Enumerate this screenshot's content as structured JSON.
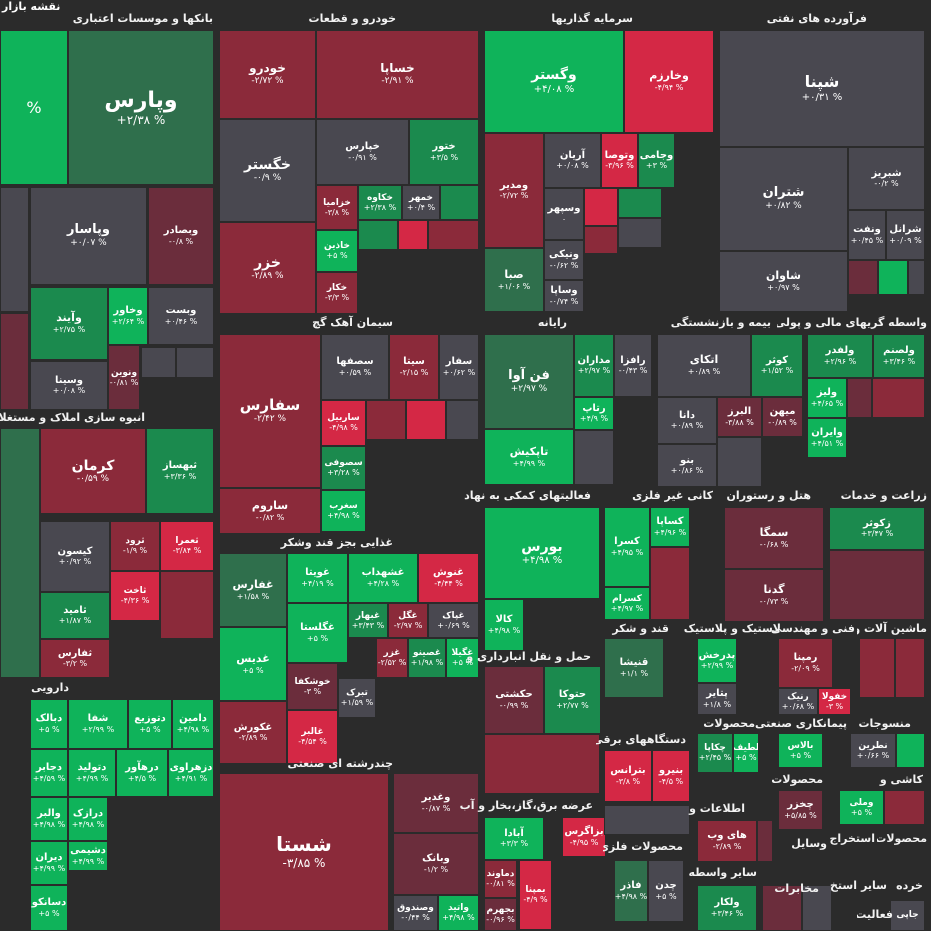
{
  "title": "نقشه بازار",
  "colors": {
    "gray": "#494850",
    "gdark": "#2f6f4c",
    "g": "#1b8a4e",
    "gbright": "#0fb35a",
    "rdark": "#6b2d3c",
    "r": "#8b2a3a",
    "rbright": "#d42845"
  },
  "sectors": [
    {
      "id": "banks",
      "label": "بانکها و موسسات اعتباری"
    },
    {
      "id": "auto",
      "label": "خودرو و قطعات"
    },
    {
      "id": "invest",
      "label": "سرمایه گذاریها"
    },
    {
      "id": "oil",
      "label": "فرآورده های نفتی"
    },
    {
      "id": "cement",
      "label": "سیمان آهک گچ"
    },
    {
      "id": "computer",
      "label": "رایانه"
    },
    {
      "id": "retire",
      "label": "بیمه و بازنشستگی"
    },
    {
      "id": "finance",
      "label": "واسطه گریهای مالی و پولی"
    },
    {
      "id": "realestate",
      "label": "انبوه سازی املاک و مستغلات"
    },
    {
      "id": "food",
      "label": "غذایی بجز قند وشکر"
    },
    {
      "id": "support",
      "label": "فعالیتهای کمکی به نهاد"
    },
    {
      "id": "nonmetal",
      "label": "کانی غیر فلزی"
    },
    {
      "id": "hotel",
      "label": "هتل و رستوران"
    },
    {
      "id": "agri",
      "label": "زراعت و خدمات"
    },
    {
      "id": "sugar",
      "label": "قند و شکر"
    },
    {
      "id": "rubber",
      "label": "لاستیک و پلاستیک"
    },
    {
      "id": "eng",
      "label": "فنی و مهندسی"
    },
    {
      "id": "machine",
      "label": "ماشین آلات و"
    },
    {
      "id": "pharma",
      "label": "دارویی"
    },
    {
      "id": "transport",
      "label": "حمل و نقل انبارداری و"
    },
    {
      "id": "devices",
      "label": "دستگاههای برقی"
    },
    {
      "id": "products",
      "label": "محصولات"
    },
    {
      "id": "contract",
      "label": "پیمانکاری صنعتی"
    },
    {
      "id": "textile",
      "label": "منسوجات"
    },
    {
      "id": "multi",
      "label": "چندرشته ای صنعتی"
    },
    {
      "id": "utility",
      "label": "عرضه برق،گاز،بخار و آب"
    },
    {
      "id": "info",
      "label": "اطلاعات و"
    },
    {
      "id": "products2",
      "label": "محصولات"
    },
    {
      "id": "kashi",
      "label": "کاشی و"
    },
    {
      "id": "metal",
      "label": "محصولات فلزی"
    },
    {
      "id": "tools",
      "label": "وسایل"
    },
    {
      "id": "extract",
      "label": "استخراج"
    },
    {
      "id": "products3",
      "label": "محصولات"
    },
    {
      "id": "other",
      "label": "سایر واسطه"
    },
    {
      "id": "commun",
      "label": "مخابرات"
    },
    {
      "id": "stone",
      "label": "استخ"
    },
    {
      "id": "other2",
      "label": "سایر"
    },
    {
      "id": "retail",
      "label": "خرده"
    },
    {
      "id": "activity",
      "label": "فعالیت"
    }
  ],
  "tiles": [
    {
      "name": "",
      "change": "%",
      "c": "gbright"
    },
    {
      "name": "وپارس",
      "change": "+۲/۳۸ %",
      "c": "gdark"
    },
    {
      "name": "",
      "change": "",
      "c": "gray"
    },
    {
      "name": "وپاسار",
      "change": "+۰/۰۷ %",
      "c": "gray"
    },
    {
      "name": "وبصادر",
      "change": "-۰/۸ %",
      "c": "rdark"
    },
    {
      "name": "",
      "change": "",
      "c": "rdark"
    },
    {
      "name": "وآیند",
      "change": "+۲/۷۵ %",
      "c": "g"
    },
    {
      "name": "وخاور",
      "change": "+۲/۶۴ %",
      "c": "gbright"
    },
    {
      "name": "وبست",
      "change": "+۰/۴۶ %",
      "c": "gray"
    },
    {
      "name": "وسینا",
      "change": "+۰/۰۸ %",
      "c": "gray"
    },
    {
      "name": "ونوین",
      "change": "-۰/۸۱ %",
      "c": "rdark"
    },
    {
      "name": "",
      "change": "",
      "c": "gray"
    },
    {
      "name": "",
      "change": "",
      "c": "gray"
    },
    {
      "name": "خودرو",
      "change": "-۲/۷۲ %",
      "c": "r"
    },
    {
      "name": "خساپا",
      "change": "-۲/۹۱ %",
      "c": "r"
    },
    {
      "name": "خگستر",
      "change": "-۰/۹ %",
      "c": "gray"
    },
    {
      "name": "خپارس",
      "change": "-۰/۹۱ %",
      "c": "gray"
    },
    {
      "name": "ختور",
      "change": "+۳/۵ %",
      "c": "g"
    },
    {
      "name": "خزر",
      "change": "-۲/۸۹ %",
      "c": "r"
    },
    {
      "name": "خزامیا",
      "change": "-۳/۸ %",
      "c": "r"
    },
    {
      "name": "خکاوه",
      "change": "+۲/۳۸ %",
      "c": "g"
    },
    {
      "name": "خمهر",
      "change": "+۰/۴ %",
      "c": "gray"
    },
    {
      "name": "",
      "change": "",
      "c": "g"
    },
    {
      "name": "خاذین",
      "change": "+۵ %",
      "c": "gbright"
    },
    {
      "name": "خکار",
      "change": "-۳/۳ %",
      "c": "r"
    },
    {
      "name": "",
      "change": "",
      "c": "g"
    },
    {
      "name": "",
      "change": "",
      "c": "rbright"
    },
    {
      "name": "",
      "change": "",
      "c": "r"
    },
    {
      "name": "وگستر",
      "change": "+۴/۰۸ %",
      "c": "gbright"
    },
    {
      "name": "وخارزم",
      "change": "-۴/۹۴ %",
      "c": "rbright"
    },
    {
      "name": "ومدیر",
      "change": "-۲/۷۲ %",
      "c": "r"
    },
    {
      "name": "آریان",
      "change": "+۰/۰۸ %",
      "c": "gray"
    },
    {
      "name": "وتوصا",
      "change": "-۳/۹۶ %",
      "c": "rbright"
    },
    {
      "name": "وجامی",
      "change": "+۳ %",
      "c": "g"
    },
    {
      "name": "وسپهر",
      "change": "۰",
      "c": "gray"
    },
    {
      "name": "",
      "change": "",
      "c": "rbright"
    },
    {
      "name": "",
      "change": "",
      "c": "g"
    },
    {
      "name": "صبا",
      "change": "+۱/۰۶ %",
      "c": "gdark"
    },
    {
      "name": "ونیکی",
      "change": "-۰/۶۲ %",
      "c": "gray"
    },
    {
      "name": "وساپا",
      "change": "-۰/۷۴ %",
      "c": "gray"
    },
    {
      "name": "",
      "change": "",
      "c": "r"
    },
    {
      "name": "",
      "change": "",
      "c": "gray"
    },
    {
      "name": "شپنا",
      "change": "+۰/۳۱ %",
      "c": "gray"
    },
    {
      "name": "شتران",
      "change": "+۰/۸۲ %",
      "c": "gray"
    },
    {
      "name": "شبریز",
      "change": "-۰/۲ %",
      "c": "gray"
    },
    {
      "name": "ونفت",
      "change": "+۰/۴۵ %",
      "c": "gray"
    },
    {
      "name": "شرانل",
      "change": "+۰/۰۹ %",
      "c": "gray"
    },
    {
      "name": "شاوان",
      "change": "+۰/۹۷ %",
      "c": "gray"
    },
    {
      "name": "",
      "change": "",
      "c": "rdark"
    },
    {
      "name": "",
      "change": "",
      "c": "gbright"
    },
    {
      "name": "",
      "change": "",
      "c": "gray"
    },
    {
      "name": "سفارس",
      "change": "-۲/۴۲ %",
      "c": "r"
    },
    {
      "name": "سصفها",
      "change": "+۰/۵۹ %",
      "c": "gray"
    },
    {
      "name": "سیتا",
      "change": "-۲/۱۵ %",
      "c": "r"
    },
    {
      "name": "سفار",
      "change": "+۰/۶۲ %",
      "c": "gray"
    },
    {
      "name": "ساربیل",
      "change": "-۴/۹۸ %",
      "c": "rbright"
    },
    {
      "name": "سصوفی",
      "change": "+۳/۲۸ %",
      "c": "g"
    },
    {
      "name": "سغرب",
      "change": "+۴/۹۸ %",
      "c": "gbright"
    },
    {
      "name": "ساروم",
      "change": "-۰/۸۲ %",
      "c": "r"
    },
    {
      "name": "",
      "change": "",
      "c": "r"
    },
    {
      "name": "",
      "change": "",
      "c": "rbright"
    },
    {
      "name": "",
      "change": "",
      "c": "gray"
    },
    {
      "name": "فن آوا",
      "change": "+۲/۹۷ %",
      "c": "gdark"
    },
    {
      "name": "مداران",
      "change": "+۲/۹۷ %",
      "c": "g"
    },
    {
      "name": "رافزا",
      "change": "-۰/۴۳ %",
      "c": "gray"
    },
    {
      "name": "رتاپ",
      "change": "+۴/۹ %",
      "c": "gbright"
    },
    {
      "name": "تاپکیش",
      "change": "+۴/۹۹ %",
      "c": "gbright"
    },
    {
      "name": "",
      "change": "",
      "c": "gray"
    },
    {
      "name": "اتکای",
      "change": "+۰/۸۹ %",
      "c": "gray"
    },
    {
      "name": "کوثر",
      "change": "+۱/۵۲ %",
      "c": "g"
    },
    {
      "name": "دانا",
      "change": "+۰/۸۹ %",
      "c": "gray"
    },
    {
      "name": "البرز",
      "change": "-۳/۸۸ %",
      "c": "rdark"
    },
    {
      "name": "میهن",
      "change": "-۰/۸۹ %",
      "c": "rdark"
    },
    {
      "name": "بنو",
      "change": "+۰/۸۶ %",
      "c": "gray"
    },
    {
      "name": "",
      "change": "",
      "c": "gray"
    },
    {
      "name": "ولفدر",
      "change": "+۲/۹۶ %",
      "c": "g"
    },
    {
      "name": "ولصنم",
      "change": "+۳/۴۶ %",
      "c": "g"
    },
    {
      "name": "ولیز",
      "change": "+۴/۶۵ %",
      "c": "gbright"
    },
    {
      "name": "",
      "change": "",
      "c": "rdark"
    },
    {
      "name": "وایران",
      "change": "+۴/۵۱ %",
      "c": "gbright"
    },
    {
      "name": "",
      "change": "",
      "c": "r"
    },
    {
      "name": "کرمان",
      "change": "-۰/۵۹ %",
      "c": "r"
    },
    {
      "name": "ثبهساز",
      "change": "+۳/۳۶ %",
      "c": "g"
    },
    {
      "name": "",
      "change": "",
      "c": "gdark"
    },
    {
      "name": "کیسون",
      "change": "+۰/۹۲ %",
      "c": "gray"
    },
    {
      "name": "ثرود",
      "change": "-۱/۹ %",
      "c": "r"
    },
    {
      "name": "ثعمرا",
      "change": "-۳/۸۴ %",
      "c": "rbright"
    },
    {
      "name": "ثاخت",
      "change": "-۴/۳۶ %",
      "c": "rbright"
    },
    {
      "name": "ثامید",
      "change": "+۱/۸۷ %",
      "c": "g"
    },
    {
      "name": "",
      "change": "",
      "c": "r"
    },
    {
      "name": "ثفارس",
      "change": "-۳/۲ %",
      "c": "r"
    },
    {
      "name": "غفارس",
      "change": "+۱/۵۸ %",
      "c": "gdark"
    },
    {
      "name": "غویتا",
      "change": "+۴/۱۹ %",
      "c": "gbright"
    },
    {
      "name": "غشهداب",
      "change": "+۴/۲۸ %",
      "c": "gbright"
    },
    {
      "name": "غنوش",
      "change": "-۴/۴۴ %",
      "c": "rbright"
    },
    {
      "name": "غگلستا",
      "change": "+۵ %",
      "c": "gbright"
    },
    {
      "name": "غبهار",
      "change": "+۳/۴۳ %",
      "c": "g"
    },
    {
      "name": "غگل",
      "change": "-۲/۹۷ %",
      "c": "r"
    },
    {
      "name": "غپاک",
      "change": "+۰/۶۹ %",
      "c": "gray"
    },
    {
      "name": "غدیس",
      "change": "+۵ %",
      "c": "gbright"
    },
    {
      "name": "غزر",
      "change": "-۲/۵۲ %",
      "c": "r"
    },
    {
      "name": "غصینو",
      "change": "+۱/۹۸ %",
      "c": "g"
    },
    {
      "name": "غگیلا",
      "change": "+۵ %",
      "c": "gbright"
    },
    {
      "name": "خوشکفا",
      "change": "-۳ %",
      "c": "rdark"
    },
    {
      "name": "غکورش",
      "change": "-۲/۸۹ %",
      "c": "r"
    },
    {
      "name": "غالبر",
      "change": "-۴/۵۴ %",
      "c": "rbright"
    },
    {
      "name": "تبرک",
      "change": "+۱/۵۹ %",
      "c": "gray"
    },
    {
      "name": "بورس",
      "change": "+۴/۹۸ %",
      "c": "gbright"
    },
    {
      "name": "کسرا",
      "change": "+۴/۹۵ %",
      "c": "gbright"
    },
    {
      "name": "کساپا",
      "change": "+۴/۹۶ %",
      "c": "gbright"
    },
    {
      "name": "کالا",
      "change": "+۴/۹۸ %",
      "c": "gbright"
    },
    {
      "name": "کسرام",
      "change": "+۴/۹۷ %",
      "c": "gbright"
    },
    {
      "name": "",
      "change": "",
      "c": "r"
    },
    {
      "name": "سمگا",
      "change": "-۰/۶۸ %",
      "c": "rdark"
    },
    {
      "name": "گدنا",
      "change": "-۰/۷۳ %",
      "c": "rdark"
    },
    {
      "name": "زکوثر",
      "change": "+۳/۴۷ %",
      "c": "g"
    },
    {
      "name": "",
      "change": "",
      "c": "rdark"
    },
    {
      "name": "قنیشا",
      "change": "+۱/۱ %",
      "c": "gdark"
    },
    {
      "name": "پدرخش",
      "change": "+۲/۹۹ %",
      "c": "gbright"
    },
    {
      "name": "پتایر",
      "change": "+۱/۸ %",
      "c": "gray"
    },
    {
      "name": "رمپنا",
      "change": "-۲/۰۹ %",
      "c": "r"
    },
    {
      "name": "رنیک",
      "change": "+۰/۶۸ %",
      "c": "gray"
    },
    {
      "name": "خفولا",
      "change": "-۳ %",
      "c": "rbright"
    },
    {
      "name": "",
      "change": "",
      "c": "r"
    },
    {
      "name": "",
      "change": "",
      "c": "r"
    },
    {
      "name": "دبالک",
      "change": "+۵ %",
      "c": "gbright"
    },
    {
      "name": "شفا",
      "change": "+۲/۹۹ %",
      "c": "gbright"
    },
    {
      "name": "دتوزیع",
      "change": "+۵ %",
      "c": "gbright"
    },
    {
      "name": "دامین",
      "change": "+۴/۹۸ %",
      "c": "gbright"
    },
    {
      "name": "دجابر",
      "change": "+۴/۵۹ %",
      "c": "gbright"
    },
    {
      "name": "دتولید",
      "change": "+۴/۹۹ %",
      "c": "gbright"
    },
    {
      "name": "درهآور",
      "change": "+۴/۵ %",
      "c": "gbright"
    },
    {
      "name": "دزهراوی",
      "change": "+۴/۹۱ %",
      "c": "gbright"
    },
    {
      "name": "والبر",
      "change": "+۴/۹۸ %",
      "c": "gbright"
    },
    {
      "name": "درازک",
      "change": "+۴/۹۸ %",
      "c": "gbright"
    },
    {
      "name": "دشیمی",
      "change": "+۴/۹۹ %",
      "c": "gbright"
    },
    {
      "name": "دیران",
      "change": "+۴/۹۹ %",
      "c": "gbright"
    },
    {
      "name": "دسانکو",
      "change": "+۵ %",
      "c": "gbright"
    },
    {
      "name": "حکشتی",
      "change": "-۰/۹۹ %",
      "c": "rdark"
    },
    {
      "name": "حتوکا",
      "change": "+۲/۷۷ %",
      "c": "g"
    },
    {
      "name": "",
      "change": "",
      "c": "r"
    },
    {
      "name": "بترانس",
      "change": "-۳/۸ %",
      "c": "rbright"
    },
    {
      "name": "بنیرو",
      "change": "-۴/۵ %",
      "c": "rbright"
    },
    {
      "name": "لطیف",
      "change": "+۵ %",
      "c": "gbright"
    },
    {
      "name": "چکاپا",
      "change": "+۲/۴۵ %",
      "c": "g"
    },
    {
      "name": "بالاس",
      "change": "+۵ %",
      "c": "gbright"
    },
    {
      "name": "نطرین",
      "change": "+۰/۶۶ %",
      "c": "gray"
    },
    {
      "name": "",
      "change": "",
      "c": "gbright"
    },
    {
      "name": "شستا",
      "change": "-۳/۸۵ %",
      "c": "r"
    },
    {
      "name": "وغدیر",
      "change": "-۰/۸۷ %",
      "c": "rdark"
    },
    {
      "name": "وبانک",
      "change": "-۱/۲ %",
      "c": "rdark"
    },
    {
      "name": "وصندوق",
      "change": "-۰/۴۴ %",
      "c": "gray"
    },
    {
      "name": "واتید",
      "change": "+۴/۹۸ %",
      "c": "gbright"
    },
    {
      "name": "آبادا",
      "change": "+۳/۳ %",
      "c": "gbright"
    },
    {
      "name": "بزاگرس",
      "change": "-۴/۹۵ %",
      "c": "rbright"
    },
    {
      "name": "دماوند",
      "change": "-۰/۸۱ %",
      "c": "r"
    },
    {
      "name": "بجهرم",
      "change": "-۰/۹۶ %",
      "c": "rdark"
    },
    {
      "name": "بمپنا",
      "change": "-۴/۹ %",
      "c": "rbright"
    },
    {
      "name": "",
      "change": "",
      "c": "gray"
    },
    {
      "name": "های وب",
      "change": "-۲/۸۹ %",
      "c": "r"
    },
    {
      "name": "",
      "change": "",
      "c": "rdark"
    },
    {
      "name": "چخزر",
      "change": "+۵/۸۵ %",
      "c": "rdark"
    },
    {
      "name": "وملی",
      "change": "+۵ %",
      "c": "gbright"
    },
    {
      "name": "",
      "change": "",
      "c": "r"
    },
    {
      "name": "فاذر",
      "change": "+۴/۹۸ %",
      "c": "gdark"
    },
    {
      "name": "چدن",
      "change": "+۵ %",
      "c": "gray"
    },
    {
      "name": "ولکار",
      "change": "+۳/۴۶ %",
      "c": "g"
    },
    {
      "name": "",
      "change": "",
      "c": "rdark"
    },
    {
      "name": "",
      "change": "",
      "c": "gray"
    },
    {
      "name": "جاپی",
      "change": "",
      "c": "gray"
    }
  ]
}
